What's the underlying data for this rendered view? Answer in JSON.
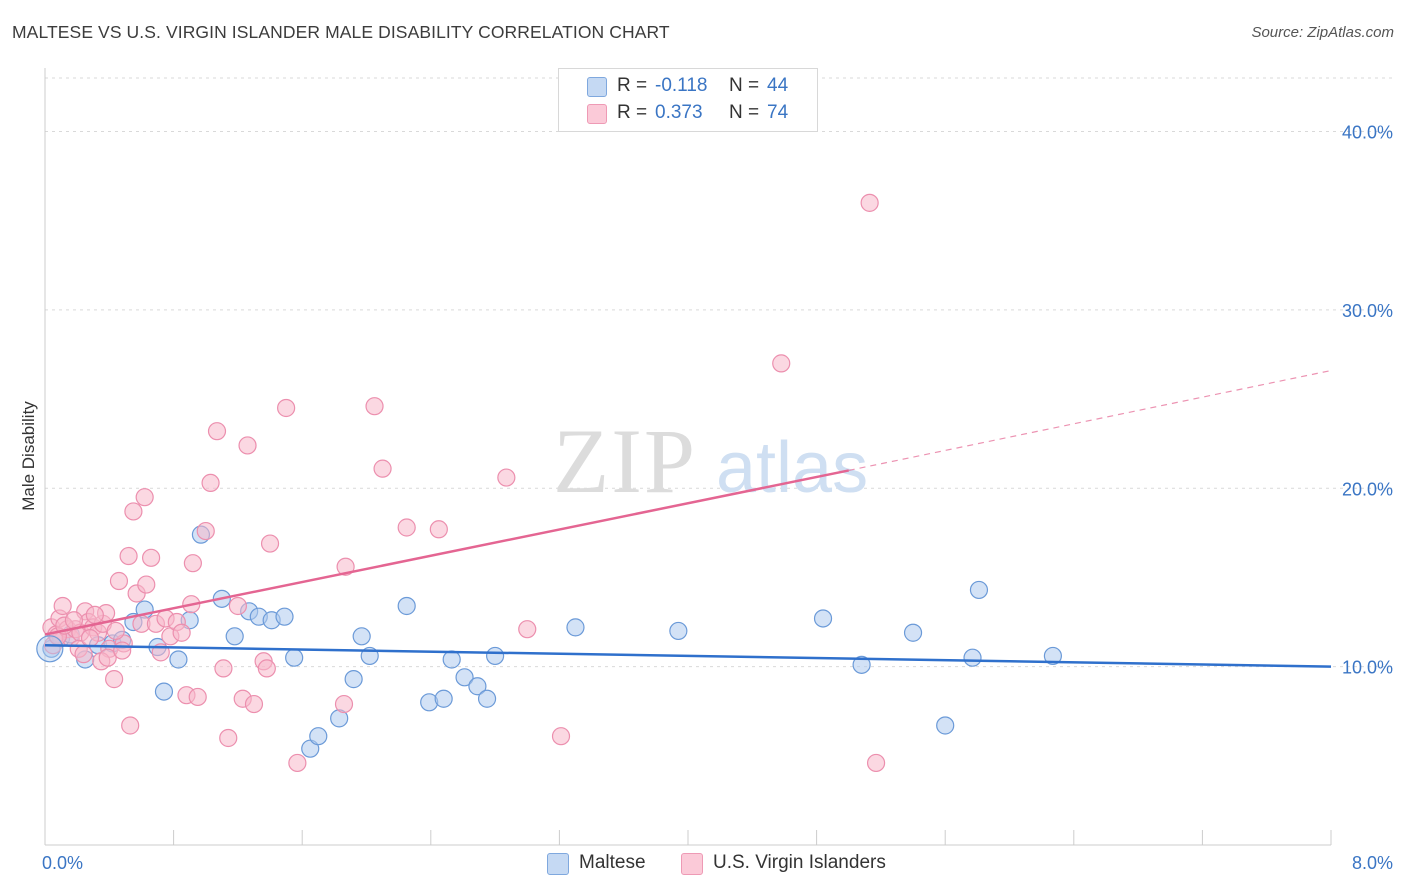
{
  "title": "MALTESE VS U.S. VIRGIN ISLANDER MALE DISABILITY CORRELATION CHART",
  "source": "Source: ZipAtlas.com",
  "colors": {
    "blue": "#3a75c4",
    "blue_fill": "#aecbef",
    "blue_line": "#2f70cc",
    "pink": "#e46592",
    "pink_fill": "#f7b8cb",
    "pink_line": "#e46592",
    "grid": "#d9d9d9",
    "axis_text": "#3a75c4"
  },
  "legend": {
    "rows": [
      {
        "r_label": "R =",
        "r_value": "-0.118",
        "n_label": "N =",
        "n_value": "44"
      },
      {
        "r_label": "R =",
        "r_value": "0.373",
        "n_label": "N =",
        "n_value": "74"
      }
    ]
  },
  "bottom_legend": [
    {
      "label": "Maltese"
    },
    {
      "label": "U.S. Virgin Islanders"
    }
  ],
  "watermark": {
    "zip": "ZIP",
    "atlas": "atlas"
  },
  "chart_data": {
    "type": "scatter",
    "title": "MALTESE VS U.S. VIRGIN ISLANDER MALE DISABILITY CORRELATION CHART",
    "xlabel": "",
    "ylabel": "Male Disability",
    "xlim": [
      0,
      8
    ],
    "ylim": [
      0,
      43
    ],
    "x_tick_labels": [
      "0.0%",
      "8.0%"
    ],
    "y_ticks": [
      10,
      20,
      30,
      40
    ],
    "y_tick_labels": [
      "10.0%",
      "20.0%",
      "30.0%",
      "40.0%"
    ],
    "grid": true,
    "series": [
      {
        "name": "Maltese",
        "color": "blue",
        "trend": {
          "x0": 0,
          "y0": 11.2,
          "x1": 8,
          "y1": 10.0,
          "dashed_to": 8
        },
        "points": [
          [
            0.04,
            11.0
          ],
          [
            0.25,
            10.4
          ],
          [
            0.33,
            11.2
          ],
          [
            0.42,
            11.3
          ],
          [
            0.48,
            11.5
          ],
          [
            0.55,
            12.5
          ],
          [
            0.62,
            13.2
          ],
          [
            0.7,
            11.1
          ],
          [
            0.74,
            8.6
          ],
          [
            0.83,
            10.4
          ],
          [
            0.9,
            12.6
          ],
          [
            0.97,
            17.4
          ],
          [
            1.1,
            13.8
          ],
          [
            1.18,
            11.7
          ],
          [
            1.27,
            13.1
          ],
          [
            1.33,
            12.8
          ],
          [
            1.41,
            12.6
          ],
          [
            1.49,
            12.8
          ],
          [
            1.55,
            10.5
          ],
          [
            1.65,
            5.4
          ],
          [
            1.7,
            6.1
          ],
          [
            1.83,
            7.1
          ],
          [
            1.92,
            9.3
          ],
          [
            1.97,
            11.7
          ],
          [
            2.02,
            10.6
          ],
          [
            2.25,
            13.4
          ],
          [
            2.39,
            8.0
          ],
          [
            2.48,
            8.2
          ],
          [
            2.53,
            10.4
          ],
          [
            2.61,
            9.4
          ],
          [
            2.69,
            8.9
          ],
          [
            2.75,
            8.2
          ],
          [
            2.8,
            10.6
          ],
          [
            3.3,
            12.2
          ],
          [
            3.94,
            12.0
          ],
          [
            4.84,
            12.7
          ],
          [
            5.08,
            10.1
          ],
          [
            5.4,
            11.9
          ],
          [
            5.6,
            6.7
          ],
          [
            5.77,
            10.5
          ],
          [
            5.81,
            14.3
          ],
          [
            6.27,
            10.6
          ],
          [
            0.1,
            11.6
          ],
          [
            0.16,
            11.8
          ]
        ]
      },
      {
        "name": "U.S. Virgin Islanders",
        "color": "pink",
        "trend": {
          "x0": 0,
          "y0": 11.8,
          "x1": 5.0,
          "y1": 21.0,
          "dashed_to": 8,
          "dashed_y": 26.6
        },
        "points": [
          [
            0.04,
            12.2
          ],
          [
            0.07,
            11.8
          ],
          [
            0.09,
            12.7
          ],
          [
            0.11,
            13.4
          ],
          [
            0.14,
            12.1
          ],
          [
            0.16,
            11.6
          ],
          [
            0.19,
            12.1
          ],
          [
            0.22,
            11.9
          ],
          [
            0.25,
            13.1
          ],
          [
            0.27,
            12.5
          ],
          [
            0.3,
            12.2
          ],
          [
            0.33,
            11.9
          ],
          [
            0.36,
            12.4
          ],
          [
            0.38,
            13.0
          ],
          [
            0.4,
            11.0
          ],
          [
            0.43,
            9.3
          ],
          [
            0.46,
            14.8
          ],
          [
            0.49,
            11.3
          ],
          [
            0.52,
            16.2
          ],
          [
            0.53,
            6.7
          ],
          [
            0.55,
            18.7
          ],
          [
            0.57,
            14.1
          ],
          [
            0.6,
            12.4
          ],
          [
            0.62,
            19.5
          ],
          [
            0.63,
            14.6
          ],
          [
            0.66,
            16.1
          ],
          [
            0.69,
            12.4
          ],
          [
            0.72,
            10.8
          ],
          [
            0.75,
            12.7
          ],
          [
            0.78,
            11.7
          ],
          [
            0.82,
            12.5
          ],
          [
            0.85,
            11.9
          ],
          [
            0.88,
            8.4
          ],
          [
            0.91,
            13.5
          ],
          [
            0.92,
            15.8
          ],
          [
            0.95,
            8.3
          ],
          [
            1.0,
            17.6
          ],
          [
            1.03,
            20.3
          ],
          [
            1.07,
            23.2
          ],
          [
            1.11,
            9.9
          ],
          [
            1.14,
            6.0
          ],
          [
            1.2,
            13.4
          ],
          [
            1.23,
            8.2
          ],
          [
            1.26,
            22.4
          ],
          [
            1.3,
            7.9
          ],
          [
            1.36,
            10.3
          ],
          [
            1.38,
            9.9
          ],
          [
            1.4,
            16.9
          ],
          [
            1.5,
            24.5
          ],
          [
            1.57,
            4.6
          ],
          [
            1.86,
            7.9
          ],
          [
            1.87,
            15.6
          ],
          [
            2.05,
            24.6
          ],
          [
            2.1,
            21.1
          ],
          [
            2.25,
            17.8
          ],
          [
            2.45,
            17.7
          ],
          [
            2.87,
            20.6
          ],
          [
            3.0,
            12.1
          ],
          [
            3.21,
            6.1
          ],
          [
            4.58,
            27.0
          ],
          [
            5.13,
            36.0
          ],
          [
            5.17,
            4.6
          ],
          [
            0.05,
            11.2
          ],
          [
            0.08,
            11.7
          ],
          [
            0.12,
            12.3
          ],
          [
            0.18,
            12.6
          ],
          [
            0.21,
            11.0
          ],
          [
            0.24,
            10.7
          ],
          [
            0.28,
            11.6
          ],
          [
            0.31,
            12.9
          ],
          [
            0.35,
            10.3
          ],
          [
            0.39,
            10.5
          ],
          [
            0.44,
            12.0
          ],
          [
            0.48,
            10.9
          ]
        ]
      }
    ]
  }
}
